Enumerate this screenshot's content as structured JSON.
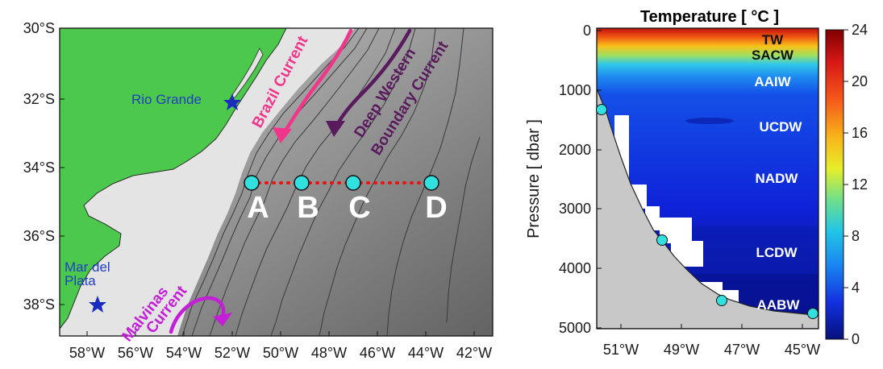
{
  "map": {
    "lat_ticks": [
      "30°S",
      "32°S",
      "34°S",
      "36°S",
      "38°S"
    ],
    "lon_ticks": [
      "58°W",
      "56°W",
      "54°W",
      "52°W",
      "50°W",
      "48°W",
      "46°W",
      "44°W",
      "42°W"
    ],
    "places": {
      "rio_grande": "Rio Grande",
      "mar_del_plata_1": "Mar del",
      "mar_del_plata_2": "Plata"
    },
    "currents": {
      "brazil": "Brazil Current",
      "dwbc_1": "Deep Western",
      "dwbc_2": "Boundary Current",
      "malvinas_1": "Malvinas",
      "malvinas_2": "Current"
    },
    "stations": [
      "A",
      "B",
      "C",
      "D"
    ],
    "colors": {
      "land": "#4cc94c",
      "shelf": "#e4e4e4",
      "brazil_current": "#f0358a",
      "dwbc": "#5a1a5e",
      "malvinas_current": "#c21fd6",
      "station_marker": "#33e0e0",
      "transect": "#ee1111",
      "place_star": "#1a2bbd"
    }
  },
  "section": {
    "title": "Temperature [ °C ]",
    "ylabel": "Pressure [ dbar ]",
    "y_ticks": [
      "0",
      "1000",
      "2000",
      "3000",
      "4000",
      "5000"
    ],
    "x_ticks": [
      "51°W",
      "49°W",
      "47°W",
      "45°W"
    ],
    "water_masses": {
      "tw": "TW",
      "sacw": "SACW",
      "aaiw": "AAIW",
      "ucdw": "UCDW",
      "nadw": "NADW",
      "lcdw": "LCDW",
      "aabw": "AABW"
    },
    "colorbar_ticks": [
      "24",
      "20",
      "16",
      "12",
      "8",
      "4",
      "0"
    ]
  },
  "chart_data": {
    "type": "heatmap",
    "title": "Temperature [ °C ]",
    "ylabel": "Pressure [ dbar ]",
    "xlabel": "",
    "ylim": [
      5000,
      0
    ],
    "clim": [
      0,
      24
    ],
    "x_ticks": [
      "51°W",
      "49°W",
      "47°W",
      "45°W"
    ],
    "layers": [
      {
        "name": "TW",
        "pressure_dbar": [
          0,
          80
        ],
        "temperature_c": 22
      },
      {
        "name": "SACW",
        "pressure_dbar": [
          80,
          500
        ],
        "temperature_c": 14
      },
      {
        "name": "AAIW",
        "pressure_dbar": [
          500,
          1100
        ],
        "temperature_c": 4
      },
      {
        "name": "UCDW",
        "pressure_dbar": [
          1100,
          2000
        ],
        "temperature_c": 3
      },
      {
        "name": "NADW",
        "pressure_dbar": [
          2000,
          3300
        ],
        "temperature_c": 2.8
      },
      {
        "name": "LCDW",
        "pressure_dbar": [
          3300,
          4300
        ],
        "temperature_c": 1.5
      },
      {
        "name": "AABW",
        "pressure_dbar": [
          4300,
          5000
        ],
        "temperature_c": 0.5
      }
    ],
    "stations": [
      {
        "name": "A",
        "pressure_dbar": 1350
      },
      {
        "name": "B",
        "pressure_dbar": 3550
      },
      {
        "name": "C",
        "pressure_dbar": 4550
      },
      {
        "name": "D",
        "pressure_dbar": 4750
      }
    ]
  }
}
